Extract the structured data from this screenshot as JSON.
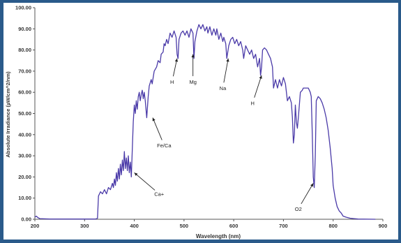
{
  "chart_data": {
    "type": "line",
    "title": "",
    "xlabel": "Wavelength (nm)",
    "ylabel": "Absolute Irradiance (µW/cm^2/nm)",
    "xlim": [
      200,
      900
    ],
    "ylim": [
      0,
      100
    ],
    "x_ticks": [
      "200",
      "300",
      "400",
      "500",
      "600",
      "700",
      "800",
      "900"
    ],
    "y_ticks": [
      "0.00",
      "10.00",
      "20.00",
      "30.00",
      "40.00",
      "50.00",
      "60.00",
      "70.00",
      "80.00",
      "90.00",
      "100.00"
    ],
    "grid": false,
    "line_color": "#4a3aa8",
    "series": [
      {
        "name": "",
        "points": [
          [
            200,
            1.0
          ],
          [
            203,
            1.5
          ],
          [
            206,
            0.8
          ],
          [
            210,
            0.3
          ],
          [
            230,
            0.1
          ],
          [
            300,
            0.1
          ],
          [
            322,
            0.1
          ],
          [
            326,
            0.5
          ],
          [
            328,
            11
          ],
          [
            332,
            13
          ],
          [
            336,
            12
          ],
          [
            340,
            14
          ],
          [
            344,
            12
          ],
          [
            348,
            15
          ],
          [
            352,
            14
          ],
          [
            356,
            17
          ],
          [
            358,
            15
          ],
          [
            360,
            19
          ],
          [
            362,
            16
          ],
          [
            364,
            22
          ],
          [
            366,
            18
          ],
          [
            368,
            24
          ],
          [
            370,
            19
          ],
          [
            372,
            26
          ],
          [
            374,
            21
          ],
          [
            376,
            28
          ],
          [
            378,
            23
          ],
          [
            380,
            32
          ],
          [
            382,
            24
          ],
          [
            384,
            29
          ],
          [
            386,
            23
          ],
          [
            388,
            30
          ],
          [
            390,
            22
          ],
          [
            392,
            27
          ],
          [
            394,
            20
          ],
          [
            396,
            33
          ],
          [
            398,
            46
          ],
          [
            400,
            54
          ],
          [
            402,
            50
          ],
          [
            404,
            56
          ],
          [
            406,
            52
          ],
          [
            408,
            58
          ],
          [
            410,
            60
          ],
          [
            412,
            56
          ],
          [
            414,
            59
          ],
          [
            416,
            61
          ],
          [
            418,
            57
          ],
          [
            420,
            60
          ],
          [
            422,
            56
          ],
          [
            425,
            48
          ],
          [
            428,
            58
          ],
          [
            430,
            63
          ],
          [
            434,
            66
          ],
          [
            436,
            64
          ],
          [
            440,
            70
          ],
          [
            445,
            72
          ],
          [
            448,
            75
          ],
          [
            452,
            74
          ],
          [
            454,
            78
          ],
          [
            458,
            79
          ],
          [
            460,
            83
          ],
          [
            462,
            82
          ],
          [
            465,
            85
          ],
          [
            468,
            83
          ],
          [
            472,
            88
          ],
          [
            476,
            86
          ],
          [
            480,
            89
          ],
          [
            484,
            86
          ],
          [
            486,
            78
          ],
          [
            488,
            76
          ],
          [
            490,
            85
          ],
          [
            494,
            88
          ],
          [
            498,
            89
          ],
          [
            502,
            87
          ],
          [
            506,
            89
          ],
          [
            510,
            86
          ],
          [
            514,
            90
          ],
          [
            518,
            88
          ],
          [
            520,
            76
          ],
          [
            522,
            84
          ],
          [
            526,
            89
          ],
          [
            530,
            92
          ],
          [
            534,
            90
          ],
          [
            538,
            92
          ],
          [
            542,
            89
          ],
          [
            546,
            91
          ],
          [
            548,
            88
          ],
          [
            552,
            91
          ],
          [
            556,
            87
          ],
          [
            560,
            90
          ],
          [
            564,
            87
          ],
          [
            566,
            90
          ],
          [
            570,
            85
          ],
          [
            574,
            88
          ],
          [
            578,
            84
          ],
          [
            580,
            86
          ],
          [
            584,
            83
          ],
          [
            586,
            76
          ],
          [
            590,
            82
          ],
          [
            594,
            85
          ],
          [
            598,
            86
          ],
          [
            602,
            83
          ],
          [
            606,
            85
          ],
          [
            610,
            82
          ],
          [
            614,
            84
          ],
          [
            618,
            80
          ],
          [
            620,
            76
          ],
          [
            624,
            82
          ],
          [
            628,
            80
          ],
          [
            632,
            78
          ],
          [
            636,
            80
          ],
          [
            640,
            76
          ],
          [
            644,
            78
          ],
          [
            648,
            72
          ],
          [
            652,
            76
          ],
          [
            654,
            68
          ],
          [
            656,
            72
          ],
          [
            658,
            80
          ],
          [
            662,
            81
          ],
          [
            666,
            80
          ],
          [
            670,
            78
          ],
          [
            674,
            76
          ],
          [
            678,
            72
          ],
          [
            680,
            62
          ],
          [
            684,
            66
          ],
          [
            688,
            62
          ],
          [
            692,
            66
          ],
          [
            696,
            63
          ],
          [
            700,
            67
          ],
          [
            704,
            64
          ],
          [
            708,
            56
          ],
          [
            712,
            58
          ],
          [
            716,
            55
          ],
          [
            718,
            48
          ],
          [
            720,
            36
          ],
          [
            722,
            40
          ],
          [
            724,
            54
          ],
          [
            726,
            46
          ],
          [
            728,
            43
          ],
          [
            730,
            48
          ],
          [
            734,
            60
          ],
          [
            738,
            61
          ],
          [
            740,
            62
          ],
          [
            746,
            62
          ],
          [
            750,
            62
          ],
          [
            754,
            60
          ],
          [
            756,
            58
          ],
          [
            758,
            40
          ],
          [
            760,
            20
          ],
          [
            762,
            15
          ],
          [
            764,
            30
          ],
          [
            766,
            56
          ],
          [
            770,
            58
          ],
          [
            774,
            57
          ],
          [
            778,
            55
          ],
          [
            782,
            52
          ],
          [
            786,
            48
          ],
          [
            790,
            42
          ],
          [
            794,
            34
          ],
          [
            798,
            24
          ],
          [
            800,
            16
          ],
          [
            804,
            10
          ],
          [
            808,
            6
          ],
          [
            812,
            4
          ],
          [
            816,
            3
          ],
          [
            820,
            1.5
          ],
          [
            826,
            1
          ],
          [
            834,
            0.5
          ],
          [
            850,
            0.1
          ],
          [
            885,
            0
          ]
        ]
      }
    ],
    "annotations": [
      {
        "label": "Ca+",
        "at": [
          400,
          22
        ],
        "text_at": [
          450,
          12
        ]
      },
      {
        "label": "Fe/Ca",
        "at": [
          437,
          48
        ],
        "text_at": [
          460,
          35
        ]
      },
      {
        "label": "H",
        "at": [
          486,
          76
        ],
        "text_at": [
          476,
          65
        ]
      },
      {
        "label": "Mg",
        "at": [
          518,
          78
        ],
        "text_at": [
          518,
          65
        ]
      },
      {
        "label": "Na",
        "at": [
          589,
          76
        ],
        "text_at": [
          578,
          62
        ]
      },
      {
        "label": "H",
        "at": [
          656,
          68
        ],
        "text_at": [
          638,
          55
        ]
      },
      {
        "label": "O2",
        "at": [
          760,
          17
        ],
        "text_at": [
          730,
          5
        ]
      }
    ]
  }
}
